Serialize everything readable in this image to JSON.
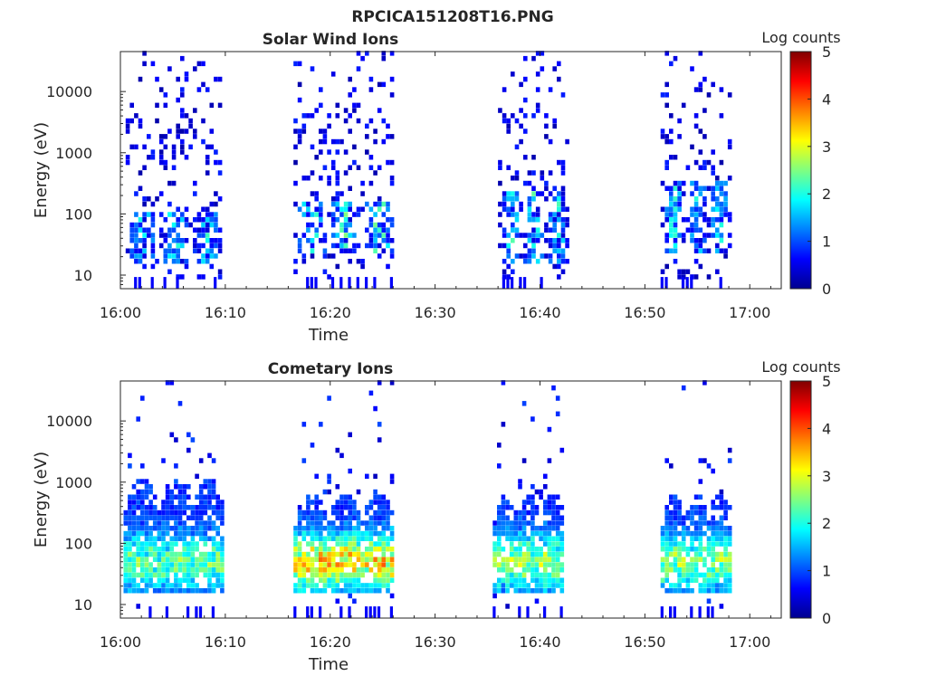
{
  "figure": {
    "title": "RPCICA151208T16.PNG"
  },
  "chart_data": [
    {
      "type": "heatmap",
      "title": "Solar Wind Ions",
      "xlabel": "Time",
      "ylabel": "Energy (eV)",
      "x_ticks": [
        "16:00",
        "16:10",
        "16:20",
        "16:30",
        "16:40",
        "16:50",
        "17:00"
      ],
      "x_range_minutes": [
        0,
        63
      ],
      "y_scale": "log",
      "y_ticks": [
        10,
        100,
        1000,
        10000
      ],
      "y_tick_labels": [
        "10",
        "100",
        "1000",
        "10000"
      ],
      "y_range": [
        6,
        45000
      ],
      "colorbar": {
        "label": "Log counts",
        "range": [
          0,
          5
        ],
        "ticks": [
          "0",
          "1",
          "2",
          "3",
          "4",
          "5"
        ],
        "colormap": "jet"
      },
      "bursts": [
        {
          "start_min": 0.5,
          "end_min": 9.5,
          "peak_log_counts": 1.8,
          "low_energy_band_ev": [
            15,
            100
          ]
        },
        {
          "start_min": 16.5,
          "end_min": 26.0,
          "peak_log_counts": 2.2,
          "low_energy_band_ev": [
            20,
            150
          ]
        },
        {
          "start_min": 36.0,
          "end_min": 42.5,
          "peak_log_counts": 2.0,
          "low_energy_band_ev": [
            15,
            200
          ]
        },
        {
          "start_min": 51.5,
          "end_min": 58.0,
          "peak_log_counts": 1.8,
          "low_energy_band_ev": [
            20,
            300
          ]
        }
      ],
      "grid": false
    },
    {
      "type": "heatmap",
      "title": "Cometary Ions",
      "xlabel": "Time",
      "ylabel": "Energy (eV)",
      "x_ticks": [
        "16:00",
        "16:10",
        "16:20",
        "16:30",
        "16:40",
        "16:50",
        "17:00"
      ],
      "x_range_minutes": [
        0,
        63
      ],
      "y_scale": "log",
      "y_ticks": [
        10,
        100,
        1000,
        10000
      ],
      "y_tick_labels": [
        "10",
        "100",
        "1000",
        "10000"
      ],
      "y_range": [
        6,
        45000
      ],
      "colorbar": {
        "label": "Log counts",
        "range": [
          0,
          5
        ],
        "ticks": [
          "0",
          "1",
          "2",
          "3",
          "4",
          "5"
        ],
        "colormap": "jet"
      },
      "bursts": [
        {
          "start_min": 0.3,
          "end_min": 9.8,
          "peak_log_counts": 2.5,
          "main_band_ev": [
            15,
            1000
          ]
        },
        {
          "start_min": 16.5,
          "end_min": 26.0,
          "peak_log_counts": 3.6,
          "main_band_ev": [
            15,
            600
          ]
        },
        {
          "start_min": 35.5,
          "end_min": 42.0,
          "peak_log_counts": 2.8,
          "main_band_ev": [
            15,
            600
          ]
        },
        {
          "start_min": 51.5,
          "end_min": 58.0,
          "peak_log_counts": 2.7,
          "main_band_ev": [
            15,
            600
          ]
        }
      ],
      "grid": false
    }
  ]
}
